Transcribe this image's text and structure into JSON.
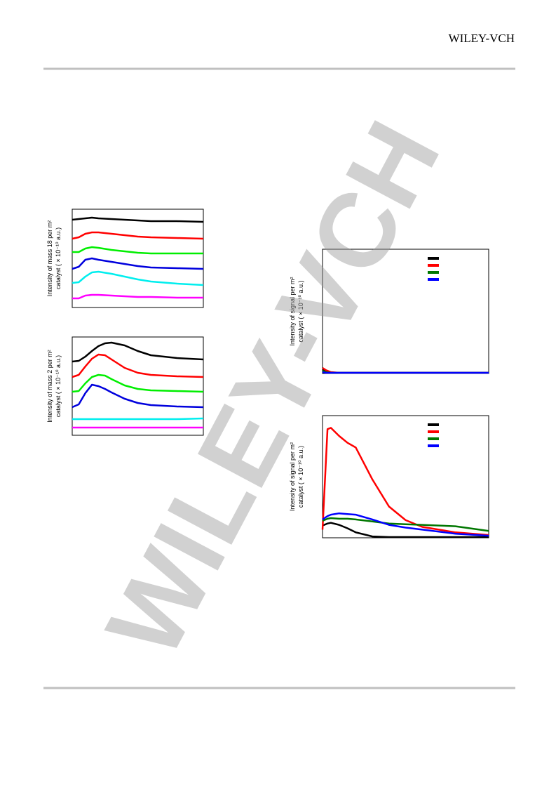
{
  "header": {
    "brand": "WILEY-VCH"
  },
  "watermark": "WILEY-VCH",
  "chart_data": [
    {
      "type": "line",
      "ylabel": [
        "Intensity of mass 18 per m²",
        "catalyst ( × 10⁻¹⁰ a.u.)"
      ],
      "xlim": [
        0,
        10
      ],
      "ylim": [
        0,
        14
      ],
      "x": [
        0,
        0.5,
        1,
        1.5,
        2,
        3,
        4,
        5,
        6,
        8,
        10
      ],
      "series": [
        {
          "color": "#000000",
          "values": [
            12.5,
            12.6,
            12.7,
            12.8,
            12.7,
            12.6,
            12.5,
            12.4,
            12.3,
            12.3,
            12.2
          ]
        },
        {
          "color": "#ff0000",
          "values": [
            9.8,
            10.0,
            10.5,
            10.7,
            10.7,
            10.5,
            10.3,
            10.1,
            10.0,
            9.9,
            9.8
          ]
        },
        {
          "color": "#00ee00",
          "values": [
            7.9,
            7.9,
            8.4,
            8.6,
            8.5,
            8.2,
            8.0,
            7.8,
            7.7,
            7.7,
            7.7
          ]
        },
        {
          "color": "#0000dd",
          "values": [
            5.5,
            5.8,
            6.8,
            7.0,
            6.8,
            6.5,
            6.2,
            5.9,
            5.7,
            5.6,
            5.5
          ]
        },
        {
          "color": "#00eeee",
          "values": [
            3.5,
            3.6,
            4.4,
            5.0,
            5.1,
            4.8,
            4.4,
            4.0,
            3.7,
            3.4,
            3.2
          ]
        },
        {
          "color": "#ff00ff",
          "values": [
            1.3,
            1.3,
            1.7,
            1.8,
            1.8,
            1.7,
            1.6,
            1.5,
            1.5,
            1.4,
            1.4
          ]
        }
      ]
    },
    {
      "type": "line",
      "ylabel": [
        "Intensity of mass 2 per m²",
        "catalyst ( × 10⁻¹⁰ a.u.)"
      ],
      "xlim": [
        0,
        10
      ],
      "ylim": [
        0,
        14
      ],
      "x": [
        0,
        0.5,
        1,
        1.5,
        2,
        2.5,
        3,
        4,
        5,
        6,
        8,
        10
      ],
      "series": [
        {
          "color": "#000000",
          "values": [
            10.5,
            10.6,
            11.2,
            12.0,
            12.7,
            13.1,
            13.2,
            12.8,
            12.0,
            11.4,
            11.0,
            10.8
          ]
        },
        {
          "color": "#ff0000",
          "values": [
            8.3,
            8.6,
            9.8,
            10.9,
            11.5,
            11.4,
            10.8,
            9.6,
            8.9,
            8.6,
            8.4,
            8.3
          ]
        },
        {
          "color": "#00ee00",
          "values": [
            6.2,
            6.3,
            7.4,
            8.3,
            8.6,
            8.5,
            8.0,
            7.1,
            6.6,
            6.4,
            6.3,
            6.2
          ]
        },
        {
          "color": "#0000dd",
          "values": [
            4.0,
            4.4,
            6.0,
            7.2,
            7.0,
            6.6,
            6.1,
            5.2,
            4.6,
            4.3,
            4.1,
            4.0
          ]
        },
        {
          "color": "#00eeee",
          "values": [
            2.3,
            2.3,
            2.3,
            2.3,
            2.3,
            2.3,
            2.3,
            2.3,
            2.3,
            2.3,
            2.3,
            2.4
          ]
        },
        {
          "color": "#ff00ff",
          "values": [
            1.1,
            1.1,
            1.1,
            1.1,
            1.1,
            1.1,
            1.1,
            1.1,
            1.1,
            1.1,
            1.1,
            1.1
          ]
        }
      ]
    },
    {
      "type": "line",
      "ylabel": [
        "Intensity of signal per m²",
        "catalyst ( × 10⁻¹⁰ a.u.)"
      ],
      "xlim": [
        0,
        10
      ],
      "ylim": [
        0,
        18
      ],
      "x": [
        0,
        0.2,
        0.5,
        1,
        2,
        4,
        6,
        8,
        10
      ],
      "series": [
        {
          "color": "#000000",
          "values": [
            0.6,
            0.3,
            0.1,
            0.1,
            0.1,
            0.1,
            0.1,
            0.1,
            0.1
          ]
        },
        {
          "color": "#ff0000",
          "values": [
            0.8,
            0.5,
            0.2,
            0.1,
            0.1,
            0.1,
            0.1,
            0.1,
            0.1
          ]
        },
        {
          "color": "#007700",
          "values": [
            0.4,
            0.2,
            0.1,
            0.1,
            0.1,
            0.1,
            0.1,
            0.1,
            0.1
          ]
        },
        {
          "color": "#0000ff",
          "values": [
            0.2,
            0.1,
            0.1,
            0.1,
            0.1,
            0.1,
            0.1,
            0.1,
            0.1
          ]
        }
      ]
    },
    {
      "type": "line",
      "ylabel": [
        "Intensity of signal per m²",
        "catalyst ( × 10⁻¹⁰ a.u.)"
      ],
      "xlim": [
        0,
        10
      ],
      "ylim": [
        0,
        18
      ],
      "x": [
        0,
        0.3,
        0.5,
        1,
        1.5,
        2,
        3,
        4,
        5,
        6,
        8,
        10
      ],
      "series": [
        {
          "color": "#000000",
          "values": [
            1.8,
            2.1,
            2.2,
            1.9,
            1.4,
            0.8,
            0.2,
            0.1,
            0.1,
            0.1,
            0.1,
            0.1
          ]
        },
        {
          "color": "#ff0000",
          "values": [
            1.2,
            16.0,
            16.2,
            15.0,
            14.0,
            13.3,
            8.6,
            4.6,
            2.6,
            1.6,
            0.8,
            0.4
          ]
        },
        {
          "color": "#007700",
          "values": [
            2.5,
            2.8,
            2.9,
            2.8,
            2.8,
            2.7,
            2.4,
            2.1,
            2.0,
            1.9,
            1.7,
            1.0
          ]
        },
        {
          "color": "#0000ff",
          "values": [
            2.7,
            3.2,
            3.4,
            3.6,
            3.5,
            3.4,
            2.7,
            1.9,
            1.5,
            1.2,
            0.6,
            0.3
          ]
        }
      ]
    }
  ]
}
